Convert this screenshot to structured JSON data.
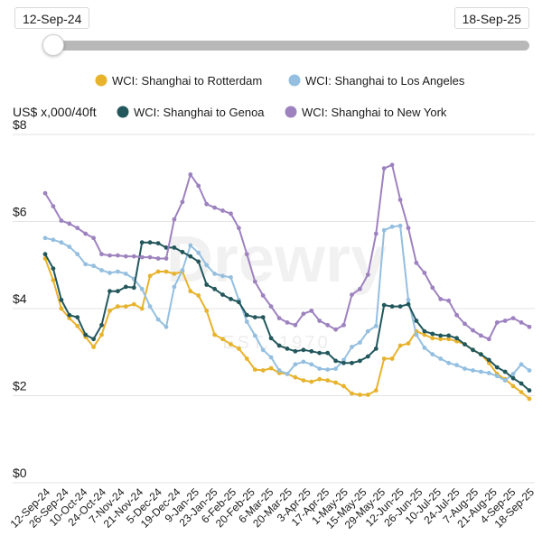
{
  "range": {
    "start": "12-Sep-24",
    "end": "18-Sep-25"
  },
  "watermark": {
    "main": "Drewry",
    "sub": "EST. 1970"
  },
  "colors": {
    "rotterdam": "#e8b32c",
    "los_angeles": "#94bfe0",
    "genoa": "#22575c",
    "new_york": "#9e82c0",
    "grid": "#e3e3e3"
  },
  "chart_data": {
    "type": "line",
    "ylabel": "US$ x,000/40ft",
    "ylim": [
      0,
      8
    ],
    "yticks": [
      0,
      2,
      4,
      6,
      8
    ],
    "ytick_labels": [
      "$0",
      "$2",
      "$4",
      "$6",
      "$8"
    ],
    "grid": true,
    "legend_position": "top",
    "x_tick_labels": [
      "12-Sep-24",
      "26-Sep-24",
      "10-Oct-24",
      "24-Oct-24",
      "7-Nov-24",
      "21-Nov-24",
      "5-Dec-24",
      "19-Dec-24",
      "9-Jan-25",
      "23-Jan-25",
      "6-Feb-25",
      "20-Feb-25",
      "6-Mar-25",
      "20-Mar-25",
      "3-Apr-25",
      "17-Apr-25",
      "1-May-25",
      "15-May-25",
      "29-May-25",
      "12-Jun-25",
      "26-Jun-25",
      "10-Jul-25",
      "24-Jul-25",
      "7-Aug-25",
      "21-Aug-25",
      "4-Sep-25",
      "18-Sep-25"
    ],
    "series": [
      {
        "name": "WCI: Shanghai to Rotterdam",
        "color_key": "rotterdam",
        "values": [
          5.15,
          4.65,
          4.0,
          3.78,
          3.6,
          3.35,
          3.12,
          3.4,
          3.95,
          4.05,
          4.05,
          4.1,
          4.0,
          4.75,
          4.85,
          4.85,
          4.8,
          4.85,
          4.4,
          4.3,
          3.95,
          3.4,
          3.3,
          3.18,
          3.08,
          2.85,
          2.6,
          2.58,
          2.63,
          2.52,
          2.5,
          2.42,
          2.35,
          2.32,
          2.38,
          2.35,
          2.3,
          2.22,
          2.05,
          2.02,
          2.02,
          2.12,
          2.85,
          2.85,
          3.15,
          3.2,
          3.48,
          3.4,
          3.32,
          3.3,
          3.3,
          3.25,
          3.18,
          3.05,
          2.95,
          2.75,
          2.5,
          2.38,
          2.22,
          2.08,
          1.93
        ]
      },
      {
        "name": "WCI: Shanghai to Los Angeles",
        "color_key": "los_angeles",
        "values": [
          5.62,
          5.58,
          5.52,
          5.42,
          5.25,
          5.02,
          4.98,
          4.88,
          4.82,
          4.85,
          4.8,
          4.68,
          4.45,
          4.05,
          3.75,
          3.58,
          4.5,
          4.88,
          5.45,
          5.28,
          5.0,
          4.8,
          4.75,
          4.72,
          4.2,
          3.7,
          3.38,
          3.05,
          2.88,
          2.58,
          2.5,
          2.72,
          2.78,
          2.72,
          2.62,
          2.6,
          2.62,
          2.82,
          3.12,
          3.22,
          3.48,
          3.6,
          5.8,
          5.88,
          5.9,
          4.2,
          3.4,
          3.1,
          2.95,
          2.85,
          2.75,
          2.7,
          2.62,
          2.58,
          2.55,
          2.52,
          2.45,
          2.35,
          2.5,
          2.72,
          2.58
        ]
      },
      {
        "name": "WCI: Shanghai to Genoa",
        "color_key": "genoa",
        "values": [
          5.25,
          4.92,
          4.2,
          3.85,
          3.8,
          3.4,
          3.3,
          3.62,
          4.4,
          4.4,
          4.5,
          4.48,
          5.52,
          5.52,
          5.5,
          5.4,
          5.4,
          5.3,
          5.2,
          5.08,
          4.55,
          4.45,
          4.32,
          4.22,
          4.15,
          3.85,
          3.8,
          3.8,
          3.32,
          3.15,
          3.08,
          3.02,
          3.05,
          3.02,
          2.98,
          2.98,
          2.8,
          2.75,
          2.75,
          2.8,
          2.9,
          3.08,
          4.08,
          4.05,
          4.05,
          4.1,
          3.72,
          3.48,
          3.42,
          3.38,
          3.38,
          3.32,
          3.18,
          3.05,
          2.95,
          2.82,
          2.65,
          2.55,
          2.4,
          2.28,
          2.12
        ]
      },
      {
        "name": "WCI: Shanghai to New York",
        "color_key": "new_york",
        "values": [
          6.65,
          6.35,
          6.02,
          5.95,
          5.85,
          5.72,
          5.62,
          5.25,
          5.22,
          5.22,
          5.2,
          5.2,
          5.18,
          5.18,
          5.15,
          5.15,
          6.05,
          6.45,
          7.08,
          6.82,
          6.4,
          6.32,
          6.25,
          6.18,
          5.85,
          5.25,
          4.62,
          4.3,
          4.05,
          3.78,
          3.68,
          3.62,
          3.88,
          3.95,
          3.72,
          3.62,
          3.52,
          3.62,
          4.32,
          4.45,
          4.78,
          5.72,
          7.22,
          7.3,
          6.5,
          5.85,
          5.05,
          4.82,
          4.48,
          4.22,
          4.18,
          3.85,
          3.65,
          3.5,
          3.38,
          3.3,
          3.68,
          3.72,
          3.78,
          3.68,
          3.58
        ]
      }
    ]
  }
}
